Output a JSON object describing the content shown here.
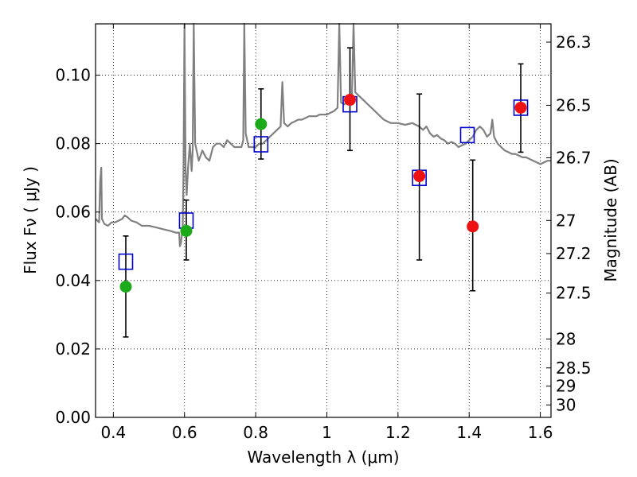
{
  "chart_data": {
    "type": "scatter",
    "title": "",
    "xlabel": "Wavelength  λ (μm)",
    "ylabel": "Flux  Fν  ( μJy )",
    "ylabel_right": "Magnitude (AB)",
    "xlim": [
      0.35,
      1.63
    ],
    "ylim": [
      0.0,
      0.115
    ],
    "grid": true,
    "x_ticks": [
      {
        "value": 0.4,
        "label": "0.4"
      },
      {
        "value": 0.6,
        "label": "0.6"
      },
      {
        "value": 0.8,
        "label": "0.8"
      },
      {
        "value": 1.0,
        "label": "1"
      },
      {
        "value": 1.2,
        "label": "1.2"
      },
      {
        "value": 1.4,
        "label": "1.4"
      },
      {
        "value": 1.6,
        "label": "1.6"
      }
    ],
    "y_ticks": [
      {
        "value": 0.0,
        "label": "0.00"
      },
      {
        "value": 0.02,
        "label": "0.02"
      },
      {
        "value": 0.04,
        "label": "0.04"
      },
      {
        "value": 0.06,
        "label": "0.06"
      },
      {
        "value": 0.08,
        "label": "0.08"
      },
      {
        "value": 0.1,
        "label": "0.10"
      }
    ],
    "mag_ticks": [
      {
        "value": 26.3,
        "label": "26.3"
      },
      {
        "value": 26.5,
        "label": "26.5"
      },
      {
        "value": 26.7,
        "label": "26.7"
      },
      {
        "value": 27.0,
        "label": "27"
      },
      {
        "value": 27.2,
        "label": "27.2"
      },
      {
        "value": 27.5,
        "label": "27.5"
      },
      {
        "value": 28.0,
        "label": "28"
      },
      {
        "value": 28.5,
        "label": "28.5"
      },
      {
        "value": 29.0,
        "label": "29"
      },
      {
        "value": 30.0,
        "label": "30"
      }
    ],
    "series": [
      {
        "name": "model spectrum",
        "kind": "line",
        "color": "#808080",
        "points": [
          [
            0.35,
            0.058
          ],
          [
            0.36,
            0.057
          ],
          [
            0.363,
            0.069
          ],
          [
            0.366,
            0.073
          ],
          [
            0.368,
            0.058
          ],
          [
            0.375,
            0.0565
          ],
          [
            0.385,
            0.056
          ],
          [
            0.395,
            0.057
          ],
          [
            0.405,
            0.057
          ],
          [
            0.415,
            0.0575
          ],
          [
            0.425,
            0.058
          ],
          [
            0.432,
            0.059
          ],
          [
            0.44,
            0.0585
          ],
          [
            0.45,
            0.0575
          ],
          [
            0.465,
            0.057
          ],
          [
            0.48,
            0.056
          ],
          [
            0.5,
            0.056
          ],
          [
            0.52,
            0.0555
          ],
          [
            0.54,
            0.055
          ],
          [
            0.56,
            0.0545
          ],
          [
            0.575,
            0.054
          ],
          [
            0.585,
            0.054
          ],
          [
            0.587,
            0.05
          ],
          [
            0.59,
            0.051
          ],
          [
            0.595,
            0.056
          ],
          [
            0.597,
            0.07
          ],
          [
            0.6,
            0.115
          ],
          [
            0.603,
            0.072
          ],
          [
            0.606,
            0.065
          ],
          [
            0.61,
            0.073
          ],
          [
            0.615,
            0.08
          ],
          [
            0.62,
            0.072
          ],
          [
            0.623,
            0.078
          ],
          [
            0.626,
            0.115
          ],
          [
            0.63,
            0.08
          ],
          [
            0.64,
            0.075
          ],
          [
            0.65,
            0.078
          ],
          [
            0.66,
            0.076
          ],
          [
            0.67,
            0.075
          ],
          [
            0.68,
            0.079
          ],
          [
            0.69,
            0.08
          ],
          [
            0.7,
            0.08
          ],
          [
            0.71,
            0.079
          ],
          [
            0.72,
            0.081
          ],
          [
            0.73,
            0.08
          ],
          [
            0.74,
            0.079
          ],
          [
            0.75,
            0.079
          ],
          [
            0.76,
            0.079
          ],
          [
            0.765,
            0.081
          ],
          [
            0.768,
            0.115
          ],
          [
            0.772,
            0.083
          ],
          [
            0.78,
            0.079
          ],
          [
            0.79,
            0.079
          ],
          [
            0.8,
            0.079
          ],
          [
            0.81,
            0.08
          ],
          [
            0.82,
            0.08
          ],
          [
            0.83,
            0.081
          ],
          [
            0.84,
            0.082
          ],
          [
            0.85,
            0.083
          ],
          [
            0.86,
            0.084
          ],
          [
            0.87,
            0.085
          ],
          [
            0.875,
            0.098
          ],
          [
            0.88,
            0.086
          ],
          [
            0.89,
            0.085
          ],
          [
            0.9,
            0.086
          ],
          [
            0.91,
            0.0865
          ],
          [
            0.92,
            0.087
          ],
          [
            0.93,
            0.087
          ],
          [
            0.94,
            0.0875
          ],
          [
            0.95,
            0.088
          ],
          [
            0.96,
            0.088
          ],
          [
            0.97,
            0.088
          ],
          [
            0.98,
            0.0885
          ],
          [
            0.99,
            0.0885
          ],
          [
            1.0,
            0.0885
          ],
          [
            1.01,
            0.089
          ],
          [
            1.02,
            0.0895
          ],
          [
            1.03,
            0.0905
          ],
          [
            1.035,
            0.115
          ],
          [
            1.04,
            0.092
          ],
          [
            1.05,
            0.0915
          ],
          [
            1.06,
            0.0925
          ],
          [
            1.07,
            0.092
          ],
          [
            1.075,
            0.115
          ],
          [
            1.08,
            0.095
          ],
          [
            1.09,
            0.094
          ],
          [
            1.1,
            0.093
          ],
          [
            1.11,
            0.092
          ],
          [
            1.12,
            0.091
          ],
          [
            1.13,
            0.09
          ],
          [
            1.14,
            0.089
          ],
          [
            1.15,
            0.088
          ],
          [
            1.16,
            0.087
          ],
          [
            1.17,
            0.0865
          ],
          [
            1.18,
            0.086
          ],
          [
            1.2,
            0.086
          ],
          [
            1.22,
            0.0855
          ],
          [
            1.24,
            0.086
          ],
          [
            1.25,
            0.0855
          ],
          [
            1.26,
            0.085
          ],
          [
            1.27,
            0.084
          ],
          [
            1.28,
            0.085
          ],
          [
            1.29,
            0.083
          ],
          [
            1.3,
            0.082
          ],
          [
            1.31,
            0.0825
          ],
          [
            1.32,
            0.0815
          ],
          [
            1.33,
            0.081
          ],
          [
            1.34,
            0.08
          ],
          [
            1.35,
            0.0805
          ],
          [
            1.36,
            0.08
          ],
          [
            1.37,
            0.079
          ],
          [
            1.38,
            0.0795
          ],
          [
            1.39,
            0.08
          ],
          [
            1.4,
            0.081
          ],
          [
            1.41,
            0.082
          ],
          [
            1.42,
            0.084
          ],
          [
            1.43,
            0.085
          ],
          [
            1.44,
            0.084
          ],
          [
            1.45,
            0.082
          ],
          [
            1.46,
            0.083
          ],
          [
            1.465,
            0.087
          ],
          [
            1.47,
            0.082
          ],
          [
            1.48,
            0.08
          ],
          [
            1.49,
            0.079
          ],
          [
            1.5,
            0.078
          ],
          [
            1.51,
            0.0775
          ],
          [
            1.52,
            0.077
          ],
          [
            1.53,
            0.077
          ],
          [
            1.54,
            0.0765
          ],
          [
            1.55,
            0.076
          ],
          [
            1.56,
            0.076
          ],
          [
            1.57,
            0.0755
          ],
          [
            1.58,
            0.075
          ],
          [
            1.59,
            0.0745
          ],
          [
            1.6,
            0.074
          ],
          [
            1.61,
            0.0745
          ],
          [
            1.62,
            0.075
          ],
          [
            1.63,
            0.075
          ]
        ]
      },
      {
        "name": "observed",
        "kind": "errorbar",
        "color": "#000000",
        "points": [
          {
            "x": 0.435,
            "lo": 0.0235,
            "hi": 0.053
          },
          {
            "x": 0.605,
            "lo": 0.046,
            "hi": 0.0635
          },
          {
            "x": 0.815,
            "lo": 0.0755,
            "hi": 0.096
          },
          {
            "x": 1.065,
            "lo": 0.078,
            "hi": 0.108
          },
          {
            "x": 1.26,
            "lo": 0.046,
            "hi": 0.0945
          },
          {
            "x": 1.41,
            "lo": 0.037,
            "hi": 0.0752
          },
          {
            "x": 1.545,
            "lo": 0.0775,
            "hi": 0.1033
          }
        ]
      },
      {
        "name": "model photometry",
        "kind": "square",
        "color": "#0000cc",
        "points": [
          [
            0.435,
            0.0455
          ],
          [
            0.605,
            0.0575
          ],
          [
            0.815,
            0.0798
          ],
          [
            1.065,
            0.0915
          ],
          [
            1.26,
            0.07
          ],
          [
            1.395,
            0.0825
          ],
          [
            1.545,
            0.0905
          ]
        ]
      },
      {
        "name": "green points",
        "kind": "circle",
        "color": "#1aaa1a",
        "points": [
          [
            0.435,
            0.0382
          ],
          [
            0.605,
            0.0545
          ],
          [
            0.815,
            0.0857
          ]
        ]
      },
      {
        "name": "red points",
        "kind": "circle",
        "color": "#ee1111",
        "points": [
          [
            1.065,
            0.0928
          ],
          [
            1.26,
            0.0705
          ],
          [
            1.41,
            0.0558
          ],
          [
            1.545,
            0.0905
          ]
        ]
      }
    ]
  }
}
